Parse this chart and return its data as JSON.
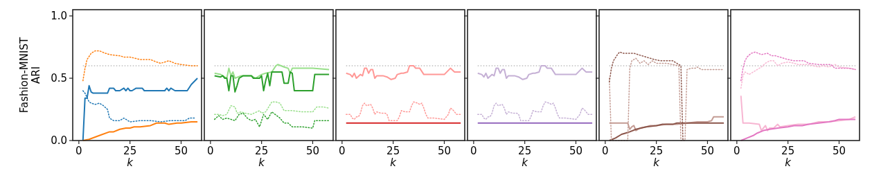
{
  "chart_data": [
    {
      "type": "line",
      "ylabel": "Fashion-MNIST\nARI",
      "xlabel": "k",
      "xlim": [
        -3,
        60
      ],
      "ylim": [
        0,
        1.05
      ],
      "xticks": [
        0,
        25,
        50
      ],
      "yticks": [
        {
          "value": 0,
          "label": "0.0"
        },
        {
          "value": 0.5,
          "label": "0.5"
        },
        {
          "value": 1,
          "label": "1.0"
        }
      ],
      "ref_lines": [
        {
          "axis": "y",
          "value": 0.6,
          "color": "#808080",
          "line_style": "dotted"
        }
      ],
      "series": [
        {
          "color": "#1f77b4",
          "line_style": "solid",
          "x": [
            2,
            3,
            4,
            5,
            6,
            7,
            10,
            14,
            15,
            17,
            18,
            20,
            22,
            23,
            24,
            25,
            26,
            28,
            31,
            32,
            42,
            43,
            44,
            45,
            47,
            53,
            55,
            58
          ],
          "values": [
            0,
            0.34,
            0.34,
            0.44,
            0.39,
            0.38,
            0.38,
            0.38,
            0.42,
            0.42,
            0.4,
            0.4,
            0.42,
            0.4,
            0.42,
            0.4,
            0.4,
            0.42,
            0.42,
            0.4,
            0.4,
            0.42,
            0.4,
            0.42,
            0.4,
            0.4,
            0.45,
            0.5
          ]
        },
        {
          "color": "#1f77b4",
          "line_style": "dotted",
          "x": [
            2,
            3,
            5,
            6,
            8,
            10,
            12,
            14,
            15,
            17,
            20,
            22,
            25,
            30,
            35,
            40,
            45,
            50,
            52,
            54,
            57
          ],
          "values": [
            0.4,
            0.38,
            0.31,
            0.3,
            0.29,
            0.3,
            0.28,
            0.25,
            0.18,
            0.16,
            0.16,
            0.18,
            0.15,
            0.16,
            0.16,
            0.15,
            0.16,
            0.16,
            0.16,
            0.18,
            0.18
          ]
        },
        {
          "color": "#ff7f0e",
          "line_style": "solid",
          "x": [
            2,
            5,
            10,
            15,
            17,
            20,
            23,
            25,
            27,
            30,
            35,
            38,
            42,
            44,
            48,
            50,
            55,
            58
          ],
          "values": [
            0,
            0.01,
            0.04,
            0.07,
            0.07,
            0.09,
            0.1,
            0.1,
            0.11,
            0.11,
            0.12,
            0.14,
            0.14,
            0.13,
            0.14,
            0.14,
            0.15,
            0.15
          ]
        },
        {
          "color": "#ff7f0e",
          "line_style": "dotted",
          "x": [
            2,
            3,
            4,
            6,
            8,
            10,
            13,
            15,
            20,
            22,
            25,
            30,
            35,
            38,
            40,
            44,
            47,
            50,
            55,
            58
          ],
          "values": [
            0.48,
            0.58,
            0.65,
            0.7,
            0.72,
            0.72,
            0.7,
            0.69,
            0.68,
            0.67,
            0.67,
            0.65,
            0.65,
            0.63,
            0.62,
            0.64,
            0.62,
            0.61,
            0.6,
            0.6
          ]
        }
      ]
    },
    {
      "type": "line",
      "xlabel": "k",
      "xlim": [
        -3,
        60
      ],
      "ylim": [
        0,
        1.05
      ],
      "xticks": [
        0,
        25,
        50
      ],
      "yticks": [
        0,
        0.5,
        1
      ],
      "tick_labels": "x",
      "ref_lines": [
        {
          "axis": "y",
          "value": 0.6,
          "color": "#808080",
          "line_style": "dotted"
        }
      ],
      "series": [
        {
          "color": "#98df8a",
          "line_style": "solid",
          "x": [
            2,
            5,
            8,
            9,
            10,
            11,
            12,
            15,
            20,
            22,
            25,
            27,
            30,
            32,
            33,
            36,
            38,
            39,
            40,
            45,
            50,
            58
          ],
          "values": [
            0.54,
            0.53,
            0.5,
            0.58,
            0.52,
            0.55,
            0.5,
            0.52,
            0.52,
            0.5,
            0.53,
            0.54,
            0.55,
            0.6,
            0.61,
            0.59,
            0.58,
            0.54,
            0.58,
            0.58,
            0.58,
            0.57
          ]
        },
        {
          "color": "#2ca02c",
          "line_style": "solid",
          "x": [
            2,
            5,
            6,
            7,
            8,
            9,
            10,
            11,
            12,
            13,
            14,
            16,
            20,
            21,
            24,
            25,
            26,
            27,
            28,
            29,
            30,
            35,
            36,
            38,
            39,
            40,
            41,
            50,
            51,
            58
          ],
          "values": [
            0.52,
            0.51,
            0.52,
            0.5,
            0.5,
            0.4,
            0.52,
            0.52,
            0.39,
            0.44,
            0.5,
            0.52,
            0.52,
            0.5,
            0.5,
            0.52,
            0.4,
            0.48,
            0.54,
            0.44,
            0.55,
            0.55,
            0.46,
            0.46,
            0.55,
            0.54,
            0.4,
            0.4,
            0.53,
            0.53
          ]
        },
        {
          "color": "#98df8a",
          "line_style": "dotted",
          "x": [
            2,
            4,
            6,
            8,
            10,
            12,
            13,
            15,
            17,
            20,
            24,
            25,
            27,
            30,
            32,
            34,
            36,
            40,
            45,
            50,
            52,
            55,
            58
          ],
          "values": [
            0.21,
            0.21,
            0.2,
            0.21,
            0.28,
            0.27,
            0.22,
            0.23,
            0.22,
            0.21,
            0.24,
            0.22,
            0.23,
            0.31,
            0.31,
            0.3,
            0.24,
            0.24,
            0.23,
            0.23,
            0.27,
            0.27,
            0.26
          ]
        },
        {
          "color": "#2ca02c",
          "line_style": "dotted",
          "x": [
            2,
            4,
            6,
            8,
            10,
            12,
            14,
            16,
            18,
            20,
            22,
            24,
            26,
            28,
            30,
            34,
            36,
            38,
            40,
            45,
            50,
            51,
            55,
            58
          ],
          "values": [
            0.17,
            0.2,
            0.17,
            0.18,
            0.17,
            0.16,
            0.21,
            0.22,
            0.18,
            0.16,
            0.17,
            0.11,
            0.21,
            0.17,
            0.23,
            0.18,
            0.14,
            0.14,
            0.11,
            0.11,
            0.1,
            0.16,
            0.16,
            0.16
          ]
        }
      ]
    },
    {
      "type": "line",
      "xlabel": "k",
      "xlim": [
        -3,
        60
      ],
      "ylim": [
        0,
        1.05
      ],
      "xticks": [
        0,
        25,
        50
      ],
      "yticks": [
        0,
        0.5,
        1
      ],
      "tick_labels": "x",
      "ref_lines": [
        {
          "axis": "y",
          "value": 0.6,
          "color": "#808080",
          "line_style": "dotted"
        }
      ],
      "series": [
        {
          "color": "#ff9896",
          "line_style": "solid",
          "x": [
            2,
            4,
            5,
            6,
            7,
            9,
            10,
            11,
            12,
            13,
            14,
            15,
            16,
            17,
            20,
            22,
            24,
            26,
            27,
            29,
            30,
            32,
            33,
            35,
            36,
            38,
            40,
            50,
            53,
            55,
            58
          ],
          "values": [
            0.54,
            0.53,
            0.51,
            0.54,
            0.5,
            0.53,
            0.52,
            0.58,
            0.58,
            0.54,
            0.57,
            0.57,
            0.5,
            0.52,
            0.52,
            0.51,
            0.49,
            0.5,
            0.53,
            0.54,
            0.54,
            0.55,
            0.6,
            0.6,
            0.58,
            0.58,
            0.53,
            0.53,
            0.58,
            0.55,
            0.55
          ]
        },
        {
          "color": "#d62728",
          "line_style": "solid",
          "x": [
            2,
            58
          ],
          "values": [
            0.14,
            0.14
          ]
        },
        {
          "color": "#ff9896",
          "line_style": "dotted",
          "x": [
            2,
            4,
            5,
            6,
            7,
            8,
            9,
            10,
            11,
            12,
            14,
            15,
            16,
            17,
            19,
            21,
            22,
            23,
            25,
            27,
            28,
            29,
            31,
            33,
            34,
            35,
            37,
            38,
            39,
            40,
            41,
            42,
            45,
            50,
            52,
            53,
            54,
            55,
            56,
            58
          ],
          "values": [
            0.21,
            0.21,
            0.18,
            0.17,
            0.19,
            0.19,
            0.22,
            0.28,
            0.3,
            0.28,
            0.29,
            0.26,
            0.21,
            0.23,
            0.22,
            0.22,
            0.21,
            0.16,
            0.16,
            0.16,
            0.19,
            0.24,
            0.23,
            0.23,
            0.28,
            0.31,
            0.3,
            0.29,
            0.3,
            0.26,
            0.21,
            0.18,
            0.18,
            0.17,
            0.21,
            0.26,
            0.25,
            0.23,
            0.21,
            0.21
          ]
        }
      ]
    },
    {
      "type": "line",
      "xlabel": "k",
      "xlim": [
        -3,
        60
      ],
      "ylim": [
        0,
        1.05
      ],
      "xticks": [
        0,
        25,
        50
      ],
      "yticks": [
        0,
        0.5,
        1
      ],
      "tick_labels": "x",
      "ref_lines": [
        {
          "axis": "y",
          "value": 0.6,
          "color": "#808080",
          "line_style": "dotted"
        }
      ],
      "series": [
        {
          "color": "#c5b0d5",
          "line_style": "solid",
          "x": [
            2,
            4,
            5,
            6,
            7,
            9,
            10,
            11,
            12,
            13,
            14,
            15,
            16,
            17,
            20,
            22,
            24,
            26,
            27,
            29,
            30,
            32,
            33,
            35,
            36,
            38,
            40,
            50,
            53,
            55,
            58
          ],
          "values": [
            0.54,
            0.53,
            0.51,
            0.54,
            0.5,
            0.53,
            0.52,
            0.58,
            0.58,
            0.54,
            0.57,
            0.57,
            0.5,
            0.52,
            0.52,
            0.51,
            0.49,
            0.5,
            0.53,
            0.54,
            0.54,
            0.55,
            0.6,
            0.6,
            0.58,
            0.58,
            0.53,
            0.53,
            0.58,
            0.55,
            0.55
          ]
        },
        {
          "color": "#9467bd",
          "line_style": "solid",
          "x": [
            2,
            58
          ],
          "values": [
            0.14,
            0.14
          ]
        },
        {
          "color": "#c5b0d5",
          "line_style": "dotted",
          "x": [
            2,
            4,
            5,
            6,
            7,
            8,
            9,
            10,
            11,
            12,
            14,
            15,
            16,
            17,
            19,
            21,
            22,
            23,
            25,
            27,
            28,
            29,
            31,
            33,
            34,
            35,
            37,
            38,
            39,
            40,
            41,
            42,
            45,
            50,
            52,
            53,
            54,
            55,
            56,
            58
          ],
          "values": [
            0.21,
            0.21,
            0.18,
            0.17,
            0.19,
            0.19,
            0.22,
            0.28,
            0.3,
            0.28,
            0.29,
            0.26,
            0.21,
            0.23,
            0.22,
            0.22,
            0.21,
            0.16,
            0.16,
            0.16,
            0.19,
            0.24,
            0.23,
            0.23,
            0.28,
            0.31,
            0.3,
            0.29,
            0.3,
            0.26,
            0.21,
            0.18,
            0.18,
            0.17,
            0.21,
            0.26,
            0.25,
            0.23,
            0.21,
            0.21
          ]
        }
      ]
    },
    {
      "type": "line",
      "xlabel": "k",
      "xlim": [
        -3,
        60
      ],
      "ylim": [
        0,
        1.05
      ],
      "xticks": [
        0,
        25,
        50
      ],
      "yticks": [
        0,
        0.5,
        1
      ],
      "tick_labels": "x",
      "ref_lines": [
        {
          "axis": "y",
          "value": 0.6,
          "color": "#808080",
          "line_style": "dotted"
        }
      ],
      "series": [
        {
          "color": "#c49c94",
          "line_style": "solid",
          "x": [
            2,
            11,
            12,
            13,
            14,
            15,
            17,
            20,
            22,
            25,
            30,
            35,
            40,
            45,
            50,
            52,
            53,
            58
          ],
          "values": [
            0.14,
            0.14,
            0.09,
            0.11,
            0.12,
            0.08,
            0.1,
            0.11,
            0.12,
            0.12,
            0.13,
            0.13,
            0.14,
            0.15,
            0.15,
            0.16,
            0.19,
            0.19
          ]
        },
        {
          "color": "#8c564b",
          "line_style": "solid",
          "x": [
            2,
            5,
            8,
            10,
            12,
            15,
            20,
            25,
            28,
            33,
            35,
            40,
            58
          ],
          "values": [
            0,
            0.02,
            0.05,
            0.06,
            0.07,
            0.09,
            0.11,
            0.12,
            0.13,
            0.13,
            0.14,
            0.14,
            0.14
          ]
        },
        {
          "color": "#c49c94",
          "line_style": "dotted",
          "x": [
            2,
            3,
            11,
            12,
            13,
            15,
            17,
            19,
            21,
            23,
            25,
            28,
            30,
            33,
            36,
            37,
            39,
            40,
            42,
            44,
            45,
            47,
            50,
            53,
            58
          ],
          "values": [
            0.5,
            0,
            0,
            0.58,
            0.64,
            0.66,
            0.62,
            0.64,
            0.61,
            0.64,
            0.62,
            0.62,
            0.62,
            0.61,
            0.6,
            0,
            0,
            0.57,
            0.58,
            0.58,
            0.59,
            0.57,
            0.57,
            0.57,
            0.57
          ]
        },
        {
          "color": "#8c564b",
          "line_style": "dotted",
          "x": [
            2,
            3,
            4,
            6,
            7,
            9,
            12,
            14,
            16,
            18,
            20,
            24,
            27,
            30,
            33,
            35,
            37,
            38
          ],
          "values": [
            0.47,
            0.58,
            0.64,
            0.69,
            0.71,
            0.7,
            0.7,
            0.7,
            0.69,
            0.68,
            0.67,
            0.65,
            0.64,
            0.64,
            0.64,
            0.62,
            0.6,
            0
          ]
        }
      ]
    },
    {
      "type": "line",
      "xlabel": "k",
      "xlim": [
        -3,
        60
      ],
      "ylim": [
        0,
        1.05
      ],
      "xticks": [
        0,
        25,
        50
      ],
      "yticks": [
        0,
        0.5,
        1
      ],
      "tick_labels": "x",
      "ref_lines": [
        {
          "axis": "y",
          "value": 0.6,
          "color": "#808080",
          "line_style": "dotted"
        }
      ],
      "series": [
        {
          "color": "#f7b6d2",
          "line_style": "solid",
          "x": [
            2,
            3,
            6,
            11,
            12,
            13,
            14,
            15,
            16,
            18,
            20,
            21,
            25,
            30,
            35,
            40,
            45,
            50,
            55,
            58
          ],
          "values": [
            0.36,
            0.14,
            0.14,
            0.13,
            0.08,
            0.1,
            0.12,
            0.08,
            0.1,
            0.1,
            0.13,
            0.11,
            0.12,
            0.13,
            0.13,
            0.15,
            0.15,
            0.16,
            0.17,
            0.19
          ]
        },
        {
          "color": "#e377c2",
          "line_style": "solid",
          "x": [
            2,
            5,
            8,
            10,
            13,
            16,
            20,
            25,
            28,
            32,
            35,
            40,
            45,
            48,
            50,
            55,
            58
          ],
          "values": [
            0,
            0.02,
            0.04,
            0.06,
            0.08,
            0.09,
            0.1,
            0.11,
            0.12,
            0.12,
            0.13,
            0.14,
            0.15,
            0.16,
            0.17,
            0.17,
            0.17
          ]
        },
        {
          "color": "#f7b6d2",
          "line_style": "dotted",
          "x": [
            2,
            3,
            4,
            6,
            8,
            10,
            12,
            14,
            16,
            18,
            20,
            22,
            25,
            28,
            30,
            35,
            40,
            42,
            45,
            48,
            50,
            55,
            58
          ],
          "values": [
            0.42,
            0.52,
            0.55,
            0.53,
            0.55,
            0.57,
            0.59,
            0.62,
            0.64,
            0.64,
            0.6,
            0.62,
            0.63,
            0.62,
            0.61,
            0.61,
            0.59,
            0.6,
            0.59,
            0.61,
            0.59,
            0.58,
            0.57
          ]
        },
        {
          "color": "#e377c2",
          "line_style": "dotted",
          "x": [
            2,
            3,
            4,
            5,
            7,
            9,
            12,
            15,
            17,
            19,
            21,
            23,
            25,
            28,
            30,
            33,
            35,
            40,
            43,
            46,
            48,
            50,
            55,
            58
          ],
          "values": [
            0.48,
            0.58,
            0.64,
            0.67,
            0.7,
            0.71,
            0.69,
            0.7,
            0.68,
            0.68,
            0.67,
            0.66,
            0.65,
            0.64,
            0.64,
            0.64,
            0.62,
            0.61,
            0.61,
            0.61,
            0.58,
            0.58,
            0.58,
            0.57
          ]
        }
      ]
    }
  ]
}
